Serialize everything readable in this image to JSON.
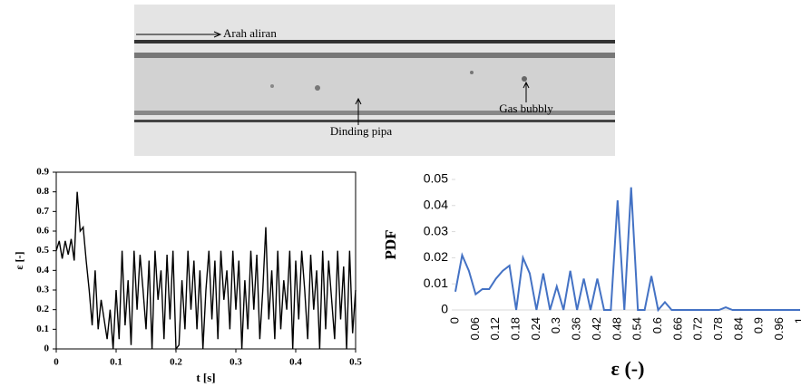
{
  "photo": {
    "labels": [
      "Arah aliran",
      "Dinding pipa",
      "Gas bubbly"
    ]
  },
  "chart_data": [
    {
      "type": "line",
      "x_label": "t [s]",
      "y_label": "ε [-]",
      "color": "#000000",
      "x": [
        0,
        0.005,
        0.01,
        0.015,
        0.02,
        0.025,
        0.03,
        0.035,
        0.04,
        0.045,
        0.05,
        0.055,
        0.06,
        0.065,
        0.07,
        0.075,
        0.08,
        0.085,
        0.09,
        0.095,
        0.1,
        0.105,
        0.11,
        0.115,
        0.12,
        0.125,
        0.13,
        0.135,
        0.14,
        0.145,
        0.15,
        0.155,
        0.16,
        0.165,
        0.17,
        0.175,
        0.18,
        0.185,
        0.19,
        0.195,
        0.2,
        0.205,
        0.21,
        0.215,
        0.22,
        0.225,
        0.23,
        0.235,
        0.24,
        0.245,
        0.25,
        0.255,
        0.26,
        0.265,
        0.27,
        0.275,
        0.28,
        0.285,
        0.29,
        0.295,
        0.3,
        0.305,
        0.31,
        0.315,
        0.32,
        0.325,
        0.33,
        0.335,
        0.34,
        0.345,
        0.35,
        0.355,
        0.36,
        0.365,
        0.37,
        0.375,
        0.38,
        0.385,
        0.39,
        0.395,
        0.4,
        0.405,
        0.41,
        0.415,
        0.42,
        0.425,
        0.43,
        0.435,
        0.44,
        0.445,
        0.45,
        0.455,
        0.46,
        0.465,
        0.47,
        0.475,
        0.48,
        0.485,
        0.49,
        0.495,
        0.5
      ],
      "values": [
        0.5,
        0.55,
        0.46,
        0.55,
        0.48,
        0.56,
        0.45,
        0.8,
        0.6,
        0.62,
        0.45,
        0.3,
        0.12,
        0.4,
        0.1,
        0.25,
        0.15,
        0.05,
        0.2,
        0,
        0.3,
        0.05,
        0.5,
        0.12,
        0.35,
        0.02,
        0.5,
        0.2,
        0.48,
        0.3,
        0.1,
        0.45,
        0,
        0.5,
        0.25,
        0.4,
        0.05,
        0.48,
        0.15,
        0.5,
        0,
        0.02,
        0.35,
        0.1,
        0.5,
        0.2,
        0.45,
        0.1,
        0.4,
        0,
        0.3,
        0.5,
        0.15,
        0.45,
        0.05,
        0.5,
        0.25,
        0.4,
        0.1,
        0.5,
        0.2,
        0.45,
        0,
        0.35,
        0.1,
        0.5,
        0.2,
        0.48,
        0.05,
        0.3,
        0.62,
        0.15,
        0.4,
        0.05,
        0.5,
        0.1,
        0.35,
        0.2,
        0.5,
        0,
        0.45,
        0.15,
        0.5,
        0.3,
        0.05,
        0.48,
        0.2,
        0.4,
        0,
        0.5,
        0.1,
        0.45,
        0.25,
        0.05,
        0.5,
        0.15,
        0.42,
        0,
        0.5,
        0.08,
        0.3
      ],
      "xlim": [
        0,
        0.5
      ],
      "xticks": [
        0,
        0.1,
        0.2,
        0.3,
        0.4,
        0.5
      ],
      "ylim": [
        0,
        0.9
      ],
      "yticks": [
        0,
        0.1,
        0.2,
        0.3,
        0.4,
        0.5,
        0.6,
        0.7,
        0.8,
        0.9
      ]
    },
    {
      "type": "line",
      "x_label": "ε (-)",
      "y_label": "PDF",
      "color": "#4472c4",
      "categories": [
        "0",
        null,
        null,
        "0.06",
        null,
        null,
        "0.12",
        null,
        null,
        "0.18",
        null,
        null,
        "0.24",
        null,
        null,
        "0.3",
        null,
        null,
        "0.36",
        null,
        null,
        "0.42",
        null,
        null,
        "0.48",
        null,
        null,
        "0.54",
        null,
        null,
        "0.6",
        null,
        null,
        "0.66",
        null,
        null,
        "0.72",
        null,
        null,
        "0.78",
        null,
        null,
        "0.84",
        null,
        null,
        "0.9",
        null,
        null,
        "0.96",
        null,
        null,
        "1"
      ],
      "values": [
        0.007,
        0.021,
        0.015,
        0.006,
        0.008,
        0.008,
        0.012,
        0.015,
        0.017,
        0,
        0.02,
        0.014,
        0,
        0.014,
        0,
        0.009,
        0,
        0.015,
        0,
        0.012,
        0,
        0.012,
        0,
        0,
        0.042,
        0,
        0.047,
        0,
        0,
        0.013,
        0,
        0.003,
        0,
        0,
        0,
        0,
        0,
        0,
        0,
        0,
        0.001,
        0,
        0,
        0,
        0,
        0,
        0,
        0,
        0,
        0,
        0,
        0
      ],
      "ylim": [
        0,
        0.05
      ],
      "yticks": [
        0,
        0.01,
        0.02,
        0.03,
        0.04,
        0.05
      ]
    }
  ]
}
